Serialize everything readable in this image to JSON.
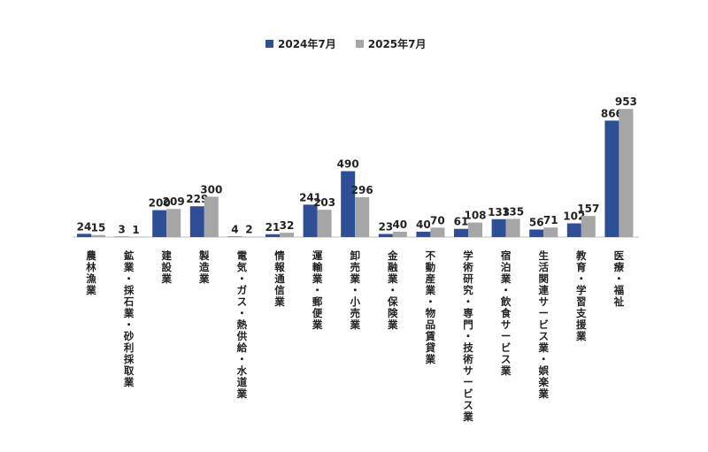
{
  "chart_data": {
    "type": "bar",
    "title": "",
    "xlabel": "",
    "ylabel": "",
    "ylim": [
      0,
      1000
    ],
    "legend_position": "top-center",
    "categories": [
      "農林漁業",
      "鉱業・採石業・砂利採取業",
      "建設業",
      "製造業",
      "電気・ガス・熱供給・水道業",
      "情報通信業",
      "運輸業・郵便業",
      "卸売業・小売業",
      "金融業・保険業",
      "不動産業・物品賃貸業",
      "学術研究・専門・技術サービス業",
      "宿泊業・飲食サービス業",
      "生活関連サービス業・娯楽業",
      "教育・学習支援業",
      "医療・福祉"
    ],
    "series": [
      {
        "name": "2024年7月",
        "color": "#2e4f95",
        "values": [
          24,
          3,
          200,
          229,
          4,
          21,
          241,
          490,
          23,
          40,
          61,
          133,
          56,
          102,
          866
        ]
      },
      {
        "name": "2025年7月",
        "color": "#a6a6a6",
        "values": [
          15,
          1,
          209,
          300,
          2,
          32,
          203,
          296,
          40,
          70,
          108,
          135,
          71,
          157,
          953
        ]
      }
    ]
  }
}
